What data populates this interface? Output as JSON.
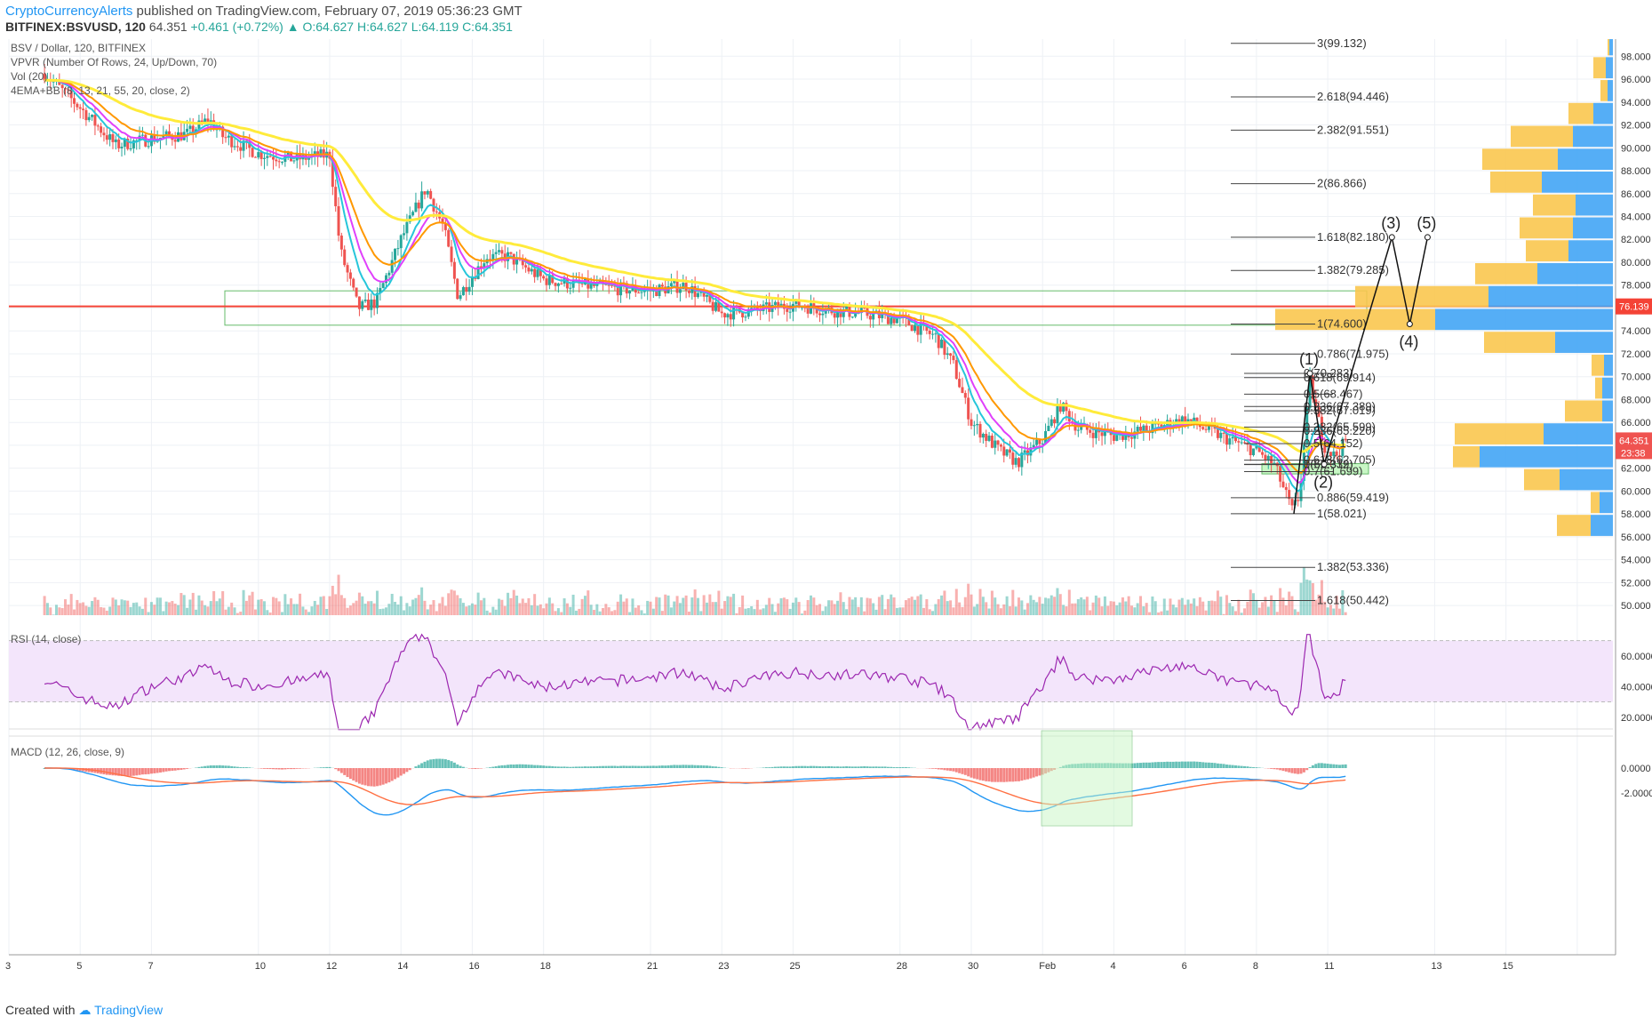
{
  "header": {
    "author": "CryptoCurrencyAlerts",
    "published": "published on TradingView.com, February 07, 2019 05:36:23 GMT",
    "symbol": "BITFINEX:BSVUSD, 120",
    "price": "64.351",
    "change": "+0.461 (+0.72%)",
    "ohlc_o": "O:64.627",
    "ohlc_h": "H:64.627",
    "ohlc_l": "L:64.119",
    "ohlc_c": "C:64.351"
  },
  "legend": {
    "title": "BSV / Dollar, 120, BITFINEX",
    "vpvr": "VPVR (Number Of Rows, 24, Up/Down, 70)",
    "vol": "Vol (20)",
    "ema": "4EMA+BB (8, 13, 21, 55, 20, close, 2)",
    "rsi": "RSI (14, close)",
    "macd": "MACD (12, 26, close, 9)"
  },
  "footer": {
    "created": "Created with",
    "brand": "TradingView"
  },
  "colors": {
    "up": "#26a69a",
    "down": "#ef5350",
    "ema8": "#26c6da",
    "ema13": "#e040fb",
    "ema21": "#ff9800",
    "ema55": "#ffeb3b",
    "resistance": "#f44336",
    "zone": "#4caf50",
    "vp_buy": "#42a5f5",
    "vp_sell": "#f9c74f",
    "rsi": "#9c27b0",
    "macd": "#2196f3",
    "signal": "#ff7043"
  },
  "chart_data": {
    "type": "candlestick",
    "x_ticks": [
      "3",
      "5",
      "7",
      "10",
      "12",
      "14",
      "16",
      "18",
      "21",
      "23",
      "25",
      "28",
      "30",
      "Feb",
      "4",
      "6",
      "8",
      "11",
      "13",
      "15"
    ],
    "price_axis": [
      "98.000",
      "96.000",
      "94.000",
      "92.000",
      "90.000",
      "88.000",
      "86.000",
      "84.000",
      "82.000",
      "80.000",
      "78.000",
      "76.000",
      "74.000",
      "72.000",
      "70.000",
      "68.000",
      "66.000",
      "64.000",
      "62.000",
      "60.000",
      "58.000",
      "56.000",
      "54.000",
      "52.000",
      "50.000"
    ],
    "ylim": [
      49,
      99.5
    ],
    "current_price": "64.351",
    "current_time": "23:38",
    "resistance_level": "76.139",
    "close_path": [
      {
        "x": 2,
        "y": 96.5
      },
      {
        "x": 3,
        "y": 93.5
      },
      {
        "x": 4,
        "y": 90.2
      },
      {
        "x": 5,
        "y": 90.8
      },
      {
        "x": 6,
        "y": 91.2
      },
      {
        "x": 6.6,
        "y": 92.5
      },
      {
        "x": 7,
        "y": 91.0
      },
      {
        "x": 8,
        "y": 89.5
      },
      {
        "x": 9,
        "y": 89.0
      },
      {
        "x": 10,
        "y": 89.4
      },
      {
        "x": 10.3,
        "y": 81.0
      },
      {
        "x": 10.8,
        "y": 76.0
      },
      {
        "x": 11.3,
        "y": 76.5
      },
      {
        "x": 12,
        "y": 82.0
      },
      {
        "x": 12.7,
        "y": 86.5
      },
      {
        "x": 13.2,
        "y": 83.0
      },
      {
        "x": 13.6,
        "y": 77.0
      },
      {
        "x": 14.4,
        "y": 80.5
      },
      {
        "x": 15,
        "y": 80.5
      },
      {
        "x": 16,
        "y": 78.5
      },
      {
        "x": 17,
        "y": 78.0
      },
      {
        "x": 18,
        "y": 77.7
      },
      {
        "x": 19,
        "y": 77.5
      },
      {
        "x": 20,
        "y": 78.0
      },
      {
        "x": 21,
        "y": 75.5
      },
      {
        "x": 22,
        "y": 75.8
      },
      {
        "x": 23,
        "y": 76.3
      },
      {
        "x": 24,
        "y": 75.8
      },
      {
        "x": 25,
        "y": 75.5
      },
      {
        "x": 26,
        "y": 75.0
      },
      {
        "x": 27,
        "y": 73.5
      },
      {
        "x": 27.5,
        "y": 71.0
      },
      {
        "x": 28,
        "y": 66.0
      },
      {
        "x": 28.8,
        "y": 63.5
      },
      {
        "x": 29.3,
        "y": 62.5
      },
      {
        "x": 30,
        "y": 64.5
      },
      {
        "x": 30.5,
        "y": 67.5
      },
      {
        "x": 31,
        "y": 65.5
      },
      {
        "x": 32,
        "y": 64.8
      },
      {
        "x": 33,
        "y": 65.4
      },
      {
        "x": 34,
        "y": 66.3
      },
      {
        "x": 35,
        "y": 64.8
      },
      {
        "x": 36,
        "y": 63.5
      },
      {
        "x": 36.5,
        "y": 62.3
      },
      {
        "x": 37,
        "y": 58.3
      },
      {
        "x": 37.2,
        "y": 59.5
      },
      {
        "x": 37.5,
        "y": 69.5
      },
      {
        "x": 37.9,
        "y": 64.0
      },
      {
        "x": 38.2,
        "y": 63.0
      },
      {
        "x": 38.5,
        "y": 64.35
      }
    ],
    "fib_retracement": [
      {
        "label": "0(70.283)",
        "value": 70.283
      },
      {
        "label": "0.618(69.914)",
        "value": 69.914
      },
      {
        "label": "0.5(68.467)",
        "value": 68.467
      },
      {
        "label": "0.236(67.389)",
        "value": 67.389
      },
      {
        "label": "0.382(67.019)",
        "value": 67.019
      },
      {
        "label": "0.382(65.599)",
        "value": 65.599
      },
      {
        "label": "0.236(65.220)",
        "value": 65.22
      },
      {
        "label": "0.5(64.152)",
        "value": 64.152
      },
      {
        "label": "0.618(62.705)",
        "value": 62.705
      },
      {
        "label": "0(62.339)",
        "value": 62.339
      },
      {
        "label": "1(62.312)",
        "value": 62.312
      },
      {
        "label": "0.7(61.699)",
        "value": 61.699
      }
    ],
    "fib_extension": [
      {
        "label": "3(99.132)",
        "value": 99.132
      },
      {
        "label": "2.618(94.446)",
        "value": 94.446
      },
      {
        "label": "2.382(91.551)",
        "value": 91.551
      },
      {
        "label": "2(86.866)",
        "value": 86.866
      },
      {
        "label": "1.618(82.180)",
        "value": 82.18
      },
      {
        "label": "1.382(79.285)",
        "value": 79.285
      },
      {
        "label": "1(74.600)",
        "value": 74.6
      },
      {
        "label": "0.786(71.975)",
        "value": 71.975
      },
      {
        "label": "0.886(59.419)",
        "value": 59.419
      },
      {
        "label": "1(58.021)",
        "value": 58.021
      },
      {
        "label": "1.382(53.336)",
        "value": 53.336
      },
      {
        "label": "1.618(50.442)",
        "value": 50.442
      }
    ],
    "waves": [
      {
        "label": "(1)",
        "x": 37.5,
        "y": 70.283
      },
      {
        "label": "(2)",
        "x": 37.9,
        "y": 62.339
      },
      {
        "label": "(3)",
        "x": 39.8,
        "y": 82.18
      },
      {
        "label": "(4)",
        "x": 40.3,
        "y": 74.6
      },
      {
        "label": "(5)",
        "x": 40.8,
        "y": 82.18
      }
    ],
    "volume_profile": [
      {
        "price": 99,
        "buy": 4,
        "sell": 2
      },
      {
        "price": 97,
        "buy": 8,
        "sell": 14
      },
      {
        "price": 95,
        "buy": 6,
        "sell": 8
      },
      {
        "price": 93,
        "buy": 22,
        "sell": 28
      },
      {
        "price": 91,
        "buy": 45,
        "sell": 70
      },
      {
        "price": 89,
        "buy": 62,
        "sell": 85
      },
      {
        "price": 87,
        "buy": 80,
        "sell": 58
      },
      {
        "price": 85,
        "buy": 42,
        "sell": 48
      },
      {
        "price": 83,
        "buy": 45,
        "sell": 60
      },
      {
        "price": 81,
        "buy": 50,
        "sell": 48
      },
      {
        "price": 79,
        "buy": 85,
        "sell": 70
      },
      {
        "price": 77,
        "buy": 140,
        "sell": 150
      },
      {
        "price": 75,
        "buy": 200,
        "sell": 180
      },
      {
        "price": 73,
        "buy": 65,
        "sell": 80
      },
      {
        "price": 71,
        "buy": 10,
        "sell": 14
      },
      {
        "price": 69,
        "buy": 12,
        "sell": 8
      },
      {
        "price": 67,
        "buy": 12,
        "sell": 42
      },
      {
        "price": 65,
        "buy": 78,
        "sell": 100
      },
      {
        "price": 63,
        "buy": 150,
        "sell": 30
      },
      {
        "price": 61,
        "buy": 60,
        "sell": 40
      },
      {
        "price": 59,
        "buy": 15,
        "sell": 10
      },
      {
        "price": 57,
        "buy": 25,
        "sell": 38
      }
    ],
    "rsi_axis": [
      "60.0000",
      "40.0000",
      "20.0000"
    ],
    "macd_axis": [
      "0.0000",
      "-2.0000"
    ]
  }
}
